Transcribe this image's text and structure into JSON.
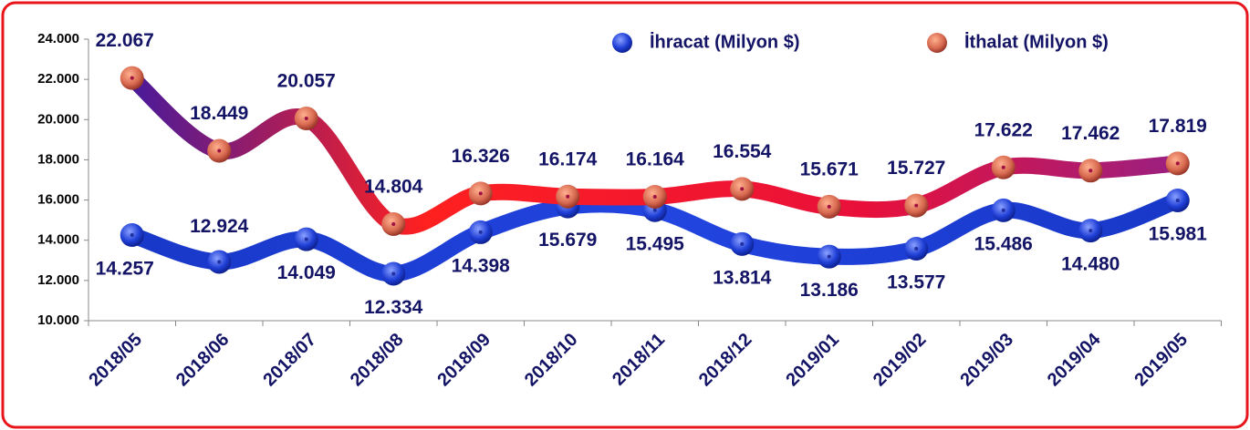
{
  "chart_data": {
    "type": "line",
    "categories": [
      "2018/05",
      "2018/06",
      "2018/07",
      "2018/08",
      "2018/09",
      "2018/10",
      "2018/11",
      "2018/12",
      "2019/01",
      "2019/02",
      "2019/03",
      "2019/04",
      "2019/05"
    ],
    "series": [
      {
        "name": "İhracat (Milyon $)",
        "color": "#1f3fd6",
        "values": [
          14257,
          12924,
          14049,
          12334,
          14398,
          15679,
          15495,
          13814,
          13186,
          13577,
          15486,
          14480,
          15981
        ],
        "value_labels": [
          "14.257",
          "12.924",
          "14.049",
          "12.334",
          "14.398",
          "15.679",
          "15.495",
          "13.814",
          "13.186",
          "13.577",
          "15.486",
          "14.480",
          "15.981"
        ]
      },
      {
        "name": "İthalat (Milyon $)",
        "color": "#e0153a",
        "values": [
          22067,
          18449,
          20057,
          14804,
          16326,
          16174,
          16164,
          16554,
          15671,
          15727,
          17622,
          17462,
          17819
        ],
        "value_labels": [
          "22.067",
          "18.449",
          "20.057",
          "14.804",
          "16.326",
          "16.174",
          "16.164",
          "16.554",
          "15.671",
          "15.727",
          "17.622",
          "17.462",
          "17.819"
        ]
      }
    ],
    "ylim": [
      10000,
      24000
    ],
    "yticks": [
      {
        "value": 10000,
        "label": "10.000"
      },
      {
        "value": 12000,
        "label": "12.000"
      },
      {
        "value": 14000,
        "label": "14.000"
      },
      {
        "value": 16000,
        "label": "16.000"
      },
      {
        "value": 18000,
        "label": "18.000"
      },
      {
        "value": 20000,
        "label": "20.000"
      },
      {
        "value": 22000,
        "label": "22.000"
      },
      {
        "value": 24000,
        "label": "24.000"
      }
    ]
  }
}
